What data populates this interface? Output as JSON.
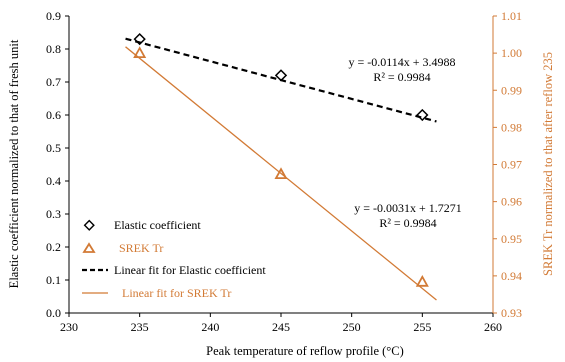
{
  "chart_data": {
    "type": "scatter",
    "xlabel": "Peak temperature of reflow profile (°C)",
    "ylabel_left": "Elastic coefficient normalized to that of fresh unit",
    "ylabel_right": "SREK Tr normalized to that after reflow 235",
    "xlim": [
      230,
      260
    ],
    "ylim_left": [
      0.0,
      0.9
    ],
    "ylim_right": [
      0.93,
      1.01
    ],
    "x_ticks": [
      230,
      235,
      240,
      245,
      250,
      255,
      260
    ],
    "y_left_ticks": [
      0.0,
      0.1,
      0.2,
      0.3,
      0.4,
      0.5,
      0.6,
      0.7,
      0.8,
      0.9
    ],
    "y_right_ticks": [
      0.93,
      0.94,
      0.95,
      0.96,
      0.97,
      0.98,
      0.99,
      1.0,
      1.01
    ],
    "x_tick_labels": [
      "230",
      "235",
      "240",
      "245",
      "250",
      "255",
      "260"
    ],
    "y_left_tick_labels": [
      "0.0",
      "0.1",
      "0.2",
      "0.3",
      "0.4",
      "0.5",
      "0.6",
      "0.7",
      "0.8",
      "0.9"
    ],
    "y_right_tick_labels": [
      "0.93",
      "0.94",
      "0.95",
      "0.96",
      "0.97",
      "0.98",
      "0.99",
      "1.00",
      "1.01"
    ],
    "grid": false,
    "legend_position": "bottom-left",
    "series": [
      {
        "name": "Elastic coefficient",
        "axis": "left",
        "marker": "diamond",
        "color": "#000000",
        "x": [
          235,
          245,
          255
        ],
        "y": [
          0.83,
          0.72,
          0.6
        ]
      },
      {
        "name": "SREK Tr",
        "axis": "right",
        "marker": "triangle",
        "color": "#d27a35",
        "x": [
          235,
          245,
          255
        ],
        "y": [
          1.0,
          0.9674,
          0.9384
        ]
      }
    ],
    "fits": [
      {
        "name": "Linear fit for Elastic coefficient",
        "axis": "left",
        "style": "dashed",
        "color": "#000000",
        "slope": -0.0114,
        "intercept": 3.4988,
        "x_range": [
          234,
          256
        ],
        "equation": "y = -0.0114x + 3.4988",
        "r2": "R² = 0.9984"
      },
      {
        "name": "Linear fit for SREK Tr",
        "axis": "right",
        "style": "solid",
        "color": "#d27a35",
        "slope": -0.0031,
        "intercept": 1.7271,
        "x_range": [
          234,
          256
        ],
        "equation": "y = -0.0031x + 1.7271",
        "r2": "R² = 0.9984"
      }
    ]
  }
}
